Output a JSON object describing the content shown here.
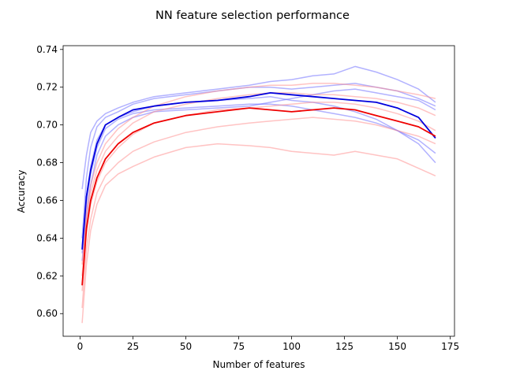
{
  "chart_data": {
    "type": "line",
    "title": "NN feature selection performance",
    "xlabel": "Number of features",
    "ylabel": "Accuracy",
    "xlim": [
      -8,
      177
    ],
    "ylim": [
      0.588,
      0.742
    ],
    "xticks": [
      0,
      25,
      50,
      75,
      100,
      125,
      150,
      175
    ],
    "yticks": [
      0.6,
      0.62,
      0.64,
      0.66,
      0.68,
      0.7,
      0.72,
      0.74
    ],
    "grid": false,
    "legend": "none",
    "colors": {
      "blue_mean": "#0000dd",
      "red_mean": "#ee0000",
      "blue_run": "#6666ff",
      "red_run": "#ff8888"
    },
    "series": [
      {
        "group": "blue",
        "kind": "mean",
        "x": [
          1,
          3,
          5,
          8,
          12,
          18,
          25,
          35,
          50,
          65,
          80,
          90,
          100,
          110,
          120,
          130,
          140,
          150,
          160,
          168
        ],
        "y": [
          0.634,
          0.662,
          0.676,
          0.69,
          0.7,
          0.704,
          0.708,
          0.71,
          0.712,
          0.713,
          0.715,
          0.717,
          0.716,
          0.715,
          0.714,
          0.713,
          0.712,
          0.709,
          0.704,
          0.693
        ]
      },
      {
        "group": "red",
        "kind": "mean",
        "x": [
          1,
          3,
          5,
          8,
          12,
          18,
          25,
          35,
          50,
          65,
          80,
          90,
          100,
          110,
          120,
          130,
          140,
          150,
          160,
          168
        ],
        "y": [
          0.615,
          0.645,
          0.66,
          0.672,
          0.682,
          0.69,
          0.696,
          0.701,
          0.705,
          0.707,
          0.709,
          0.708,
          0.707,
          0.708,
          0.709,
          0.708,
          0.705,
          0.702,
          0.699,
          0.694
        ]
      },
      {
        "group": "blue",
        "kind": "run",
        "x": [
          1,
          3,
          5,
          8,
          12,
          18,
          25,
          35,
          50,
          65,
          80,
          90,
          100,
          110,
          120,
          130,
          140,
          150,
          160,
          168
        ],
        "y": [
          0.666,
          0.684,
          0.696,
          0.702,
          0.706,
          0.709,
          0.712,
          0.715,
          0.717,
          0.719,
          0.721,
          0.723,
          0.724,
          0.726,
          0.727,
          0.731,
          0.728,
          0.724,
          0.719,
          0.712
        ]
      },
      {
        "group": "blue",
        "kind": "run",
        "x": [
          1,
          3,
          5,
          8,
          12,
          18,
          25,
          35,
          50,
          65,
          80,
          90,
          100,
          110,
          120,
          130,
          140,
          150,
          160,
          168
        ],
        "y": [
          0.64,
          0.672,
          0.688,
          0.699,
          0.704,
          0.707,
          0.711,
          0.714,
          0.716,
          0.718,
          0.72,
          0.72,
          0.719,
          0.72,
          0.721,
          0.722,
          0.72,
          0.718,
          0.714,
          0.71
        ]
      },
      {
        "group": "blue",
        "kind": "run",
        "x": [
          1,
          3,
          5,
          8,
          12,
          18,
          25,
          35,
          50,
          65,
          80,
          90,
          100,
          110,
          120,
          130,
          140,
          150,
          160,
          168
        ],
        "y": [
          0.636,
          0.662,
          0.678,
          0.692,
          0.7,
          0.704,
          0.707,
          0.71,
          0.712,
          0.713,
          0.714,
          0.715,
          0.713,
          0.712,
          0.71,
          0.707,
          0.703,
          0.697,
          0.69,
          0.68
        ]
      },
      {
        "group": "blue",
        "kind": "run",
        "x": [
          1,
          3,
          5,
          8,
          12,
          18,
          25,
          35,
          50,
          65,
          80,
          90,
          100,
          110,
          120,
          130,
          140,
          150,
          160,
          168
        ],
        "y": [
          0.632,
          0.658,
          0.674,
          0.688,
          0.698,
          0.703,
          0.706,
          0.708,
          0.709,
          0.71,
          0.711,
          0.711,
          0.71,
          0.708,
          0.706,
          0.704,
          0.701,
          0.697,
          0.692,
          0.685
        ]
      },
      {
        "group": "blue",
        "kind": "run",
        "x": [
          1,
          3,
          5,
          8,
          12,
          18,
          25,
          35,
          50,
          65,
          80,
          90,
          100,
          110,
          120,
          130,
          140,
          150,
          160,
          168
        ],
        "y": [
          0.628,
          0.652,
          0.668,
          0.684,
          0.694,
          0.7,
          0.704,
          0.707,
          0.708,
          0.709,
          0.71,
          0.712,
          0.714,
          0.716,
          0.718,
          0.719,
          0.717,
          0.715,
          0.713,
          0.708
        ]
      },
      {
        "group": "red",
        "kind": "run",
        "x": [
          1,
          3,
          5,
          8,
          12,
          18,
          25,
          35,
          50,
          65,
          80,
          90,
          100,
          110,
          120,
          130,
          140,
          150,
          160,
          168
        ],
        "y": [
          0.595,
          0.626,
          0.644,
          0.658,
          0.668,
          0.674,
          0.678,
          0.683,
          0.688,
          0.69,
          0.689,
          0.688,
          0.686,
          0.685,
          0.684,
          0.686,
          0.684,
          0.682,
          0.677,
          0.673
        ]
      },
      {
        "group": "red",
        "kind": "run",
        "x": [
          1,
          3,
          5,
          8,
          12,
          18,
          25,
          35,
          50,
          65,
          80,
          90,
          100,
          110,
          120,
          130,
          140,
          150,
          160,
          168
        ],
        "y": [
          0.603,
          0.634,
          0.65,
          0.664,
          0.673,
          0.68,
          0.686,
          0.691,
          0.696,
          0.699,
          0.701,
          0.702,
          0.703,
          0.704,
          0.703,
          0.702,
          0.7,
          0.697,
          0.694,
          0.69
        ]
      },
      {
        "group": "red",
        "kind": "run",
        "x": [
          1,
          3,
          5,
          8,
          12,
          18,
          25,
          35,
          50,
          65,
          80,
          90,
          100,
          110,
          120,
          130,
          140,
          150,
          160,
          168
        ],
        "y": [
          0.612,
          0.642,
          0.658,
          0.67,
          0.68,
          0.688,
          0.695,
          0.701,
          0.705,
          0.708,
          0.709,
          0.71,
          0.711,
          0.712,
          0.712,
          0.711,
          0.709,
          0.706,
          0.702,
          0.697
        ]
      },
      {
        "group": "red",
        "kind": "run",
        "x": [
          1,
          3,
          5,
          8,
          12,
          18,
          25,
          35,
          50,
          65,
          80,
          90,
          100,
          110,
          120,
          130,
          140,
          150,
          160,
          168
        ],
        "y": [
          0.62,
          0.65,
          0.664,
          0.676,
          0.686,
          0.694,
          0.701,
          0.707,
          0.711,
          0.714,
          0.716,
          0.717,
          0.717,
          0.716,
          0.716,
          0.715,
          0.714,
          0.712,
          0.709,
          0.705
        ]
      },
      {
        "group": "red",
        "kind": "run",
        "x": [
          1,
          3,
          5,
          8,
          12,
          18,
          25,
          35,
          50,
          65,
          80,
          90,
          100,
          110,
          120,
          130,
          140,
          150,
          160,
          168
        ],
        "y": [
          0.626,
          0.654,
          0.668,
          0.68,
          0.69,
          0.698,
          0.704,
          0.71,
          0.715,
          0.718,
          0.72,
          0.721,
          0.721,
          0.722,
          0.722,
          0.721,
          0.72,
          0.718,
          0.716,
          0.714
        ]
      }
    ]
  }
}
